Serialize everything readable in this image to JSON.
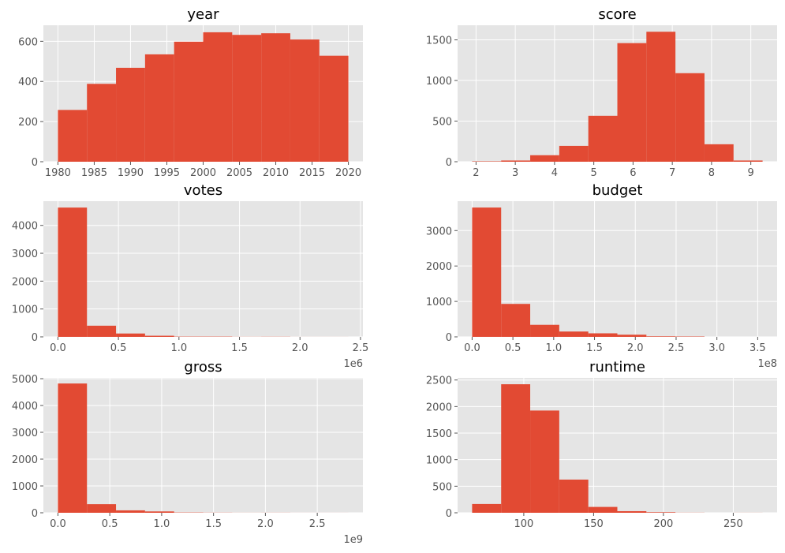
{
  "style": {
    "background": "#ffffff",
    "axes_facecolor": "#e5e5e5",
    "grid_color": "#ffffff",
    "bar_color": "#e24a33",
    "tick_label_color": "#555555"
  },
  "chart_data": [
    {
      "type": "histogram",
      "title": "year",
      "bin_edges": [
        1980,
        1984,
        1988,
        1992,
        1996,
        2000,
        2004,
        2008,
        2012,
        2016,
        2020
      ],
      "counts": [
        258,
        388,
        468,
        535,
        598,
        645,
        632,
        640,
        609,
        528
      ],
      "xlim": [
        1978,
        2022
      ],
      "ylim": [
        0,
        680
      ],
      "xticks": [
        1980,
        1985,
        1990,
        1995,
        2000,
        2005,
        2010,
        2015,
        2020
      ],
      "xtick_labels": [
        "1980",
        "1985",
        "1990",
        "1995",
        "2000",
        "2005",
        "2010",
        "2015",
        "2020"
      ],
      "yticks": [
        0,
        200,
        400,
        600
      ],
      "ytick_labels": [
        "0",
        "200",
        "400",
        "600"
      ],
      "x_offset_label": "",
      "grid": true
    },
    {
      "type": "histogram",
      "title": "score",
      "bin_edges": [
        1.9,
        2.64,
        3.38,
        4.12,
        4.86,
        5.6,
        6.34,
        7.08,
        7.82,
        8.56,
        9.3
      ],
      "counts": [
        5,
        15,
        80,
        195,
        565,
        1460,
        1600,
        1090,
        215,
        15
      ],
      "xlim": [
        1.53,
        9.67
      ],
      "ylim": [
        0,
        1680
      ],
      "xticks": [
        2,
        3,
        4,
        5,
        6,
        7,
        8,
        9
      ],
      "xtick_labels": [
        "2",
        "3",
        "4",
        "5",
        "6",
        "7",
        "8",
        "9"
      ],
      "yticks": [
        0,
        500,
        1000,
        1500
      ],
      "ytick_labels": [
        "0",
        "500",
        "1000",
        "1500"
      ],
      "x_offset_label": "",
      "grid": true
    },
    {
      "type": "histogram",
      "title": "votes",
      "bin_edges": [
        0,
        0.24,
        0.48,
        0.72,
        0.96,
        1.2,
        1.44,
        1.68,
        1.92,
        2.16,
        2.4
      ],
      "counts": [
        4640,
        400,
        120,
        40,
        10,
        10,
        3,
        5,
        1,
        1
      ],
      "xlim": [
        -0.12,
        2.52
      ],
      "ylim": [
        0,
        4870
      ],
      "xticks": [
        0.0,
        0.5,
        1.0,
        1.5,
        2.0,
        2.5
      ],
      "xtick_labels": [
        "0.0",
        "0.5",
        "1.0",
        "1.5",
        "2.0",
        "2.5"
      ],
      "yticks": [
        0,
        1000,
        2000,
        3000,
        4000
      ],
      "ytick_labels": [
        "0",
        "1000",
        "2000",
        "3000",
        "4000"
      ],
      "x_offset_label": "1e6",
      "grid": true
    },
    {
      "type": "histogram",
      "title": "budget",
      "bin_edges": [
        0,
        0.356,
        0.712,
        1.068,
        1.424,
        1.78,
        2.136,
        2.492,
        2.848,
        3.204,
        3.56
      ],
      "counts": [
        3650,
        930,
        340,
        150,
        100,
        60,
        15,
        10,
        0,
        0
      ],
      "xlim": [
        -0.178,
        3.738
      ],
      "ylim": [
        0,
        3830
      ],
      "xticks": [
        0.0,
        0.5,
        1.0,
        1.5,
        2.0,
        2.5,
        3.0,
        3.5
      ],
      "xtick_labels": [
        "0.0",
        "0.5",
        "1.0",
        "1.5",
        "2.0",
        "2.5",
        "3.0",
        "3.5"
      ],
      "yticks": [
        0,
        1000,
        2000,
        3000
      ],
      "ytick_labels": [
        "0",
        "1000",
        "2000",
        "3000"
      ],
      "x_offset_label": "1e8",
      "grid": true
    },
    {
      "type": "histogram",
      "title": "gross",
      "bin_edges": [
        0,
        0.28,
        0.56,
        0.84,
        1.12,
        1.4,
        1.68,
        1.96,
        2.24,
        2.52,
        2.8
      ],
      "counts": [
        4820,
        320,
        90,
        50,
        10,
        5,
        2,
        3,
        1,
        1
      ],
      "xlim": [
        -0.14,
        2.94
      ],
      "ylim": [
        0,
        5030
      ],
      "xticks": [
        0.0,
        0.5,
        1.0,
        1.5,
        2.0,
        2.5
      ],
      "xtick_labels": [
        "0.0",
        "0.5",
        "1.0",
        "1.5",
        "2.0",
        "2.5"
      ],
      "yticks": [
        0,
        1000,
        2000,
        3000,
        4000,
        5000
      ],
      "ytick_labels": [
        "0",
        "1000",
        "2000",
        "3000",
        "4000",
        "5000"
      ],
      "x_offset_label": "1e9",
      "grid": true
    },
    {
      "type": "histogram",
      "title": "runtime",
      "bin_edges": [
        63,
        83.8,
        104.6,
        125.4,
        146.2,
        167,
        187.8,
        208.6,
        229.4,
        250.2,
        271
      ],
      "counts": [
        165,
        2420,
        1925,
        625,
        110,
        30,
        10,
        2,
        0,
        1
      ],
      "xlim": [
        52.6,
        281.4
      ],
      "ylim": [
        0,
        2540
      ],
      "xticks": [
        100,
        150,
        200,
        250
      ],
      "xtick_labels": [
        "100",
        "150",
        "200",
        "250"
      ],
      "yticks": [
        0,
        500,
        1000,
        1500,
        2000,
        2500
      ],
      "ytick_labels": [
        "0",
        "500",
        "1000",
        "1500",
        "2000",
        "2500"
      ],
      "x_offset_label": "",
      "grid": true
    }
  ]
}
